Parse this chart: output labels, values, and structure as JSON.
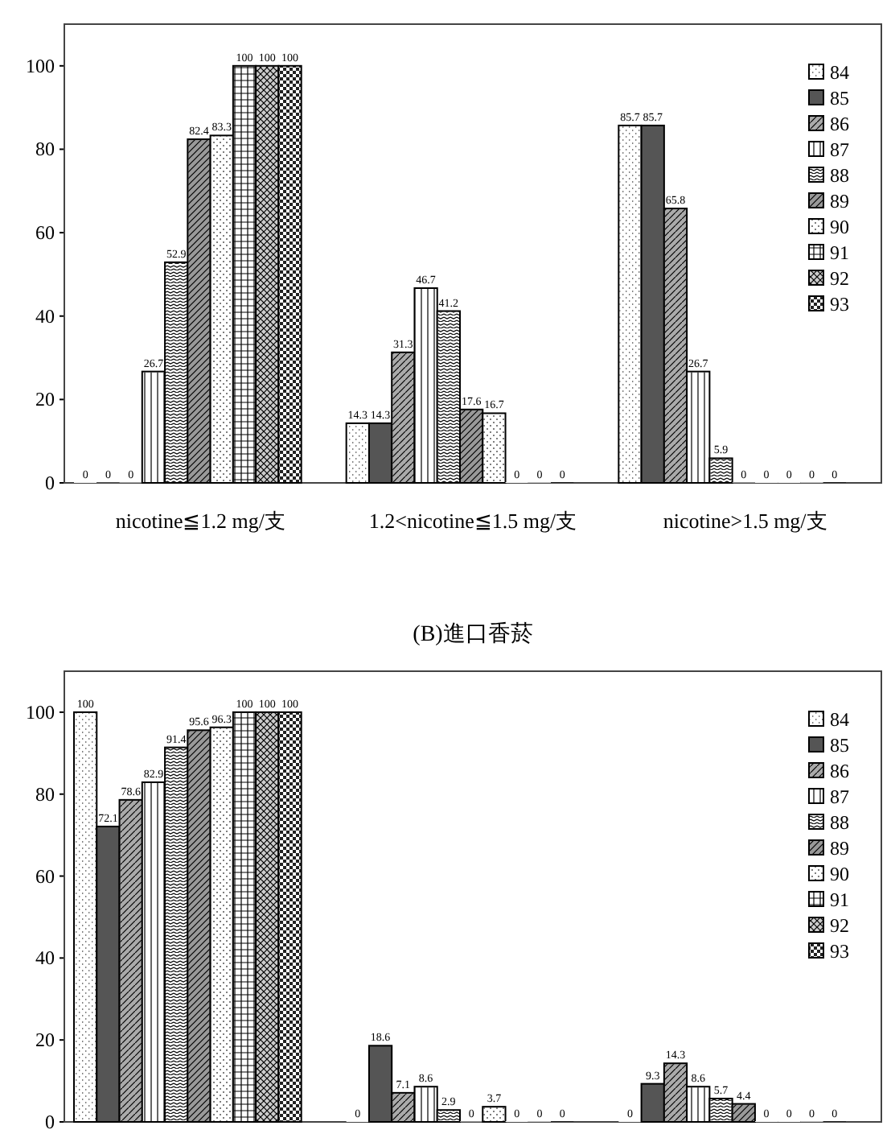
{
  "chart_data": [
    {
      "type": "bar",
      "categories": [
        "nicotine≦1.2 mg/支",
        "1.2<nicotine≦1.5 mg/支",
        "nicotine>1.5 mg/支"
      ],
      "ylim": [
        0,
        110
      ],
      "yticks": [
        0,
        20,
        40,
        60,
        80,
        100
      ],
      "data_labels": true,
      "legend": "right",
      "series": [
        {
          "name": "84",
          "color": "#ffffff",
          "values": [
            0,
            14.3,
            85.7
          ]
        },
        {
          "name": "85",
          "color": "#555555",
          "values": [
            0,
            14.3,
            85.7
          ]
        },
        {
          "name": "86",
          "color": "#aaaaaa",
          "values": [
            0,
            31.3,
            65.8
          ]
        },
        {
          "name": "87",
          "color": "#ffffff",
          "values": [
            26.7,
            46.7,
            26.7
          ]
        },
        {
          "name": "88",
          "color": "#ffffff",
          "values": [
            52.9,
            41.2,
            5.9
          ]
        },
        {
          "name": "89",
          "color": "#999999",
          "values": [
            82.4,
            17.6,
            0
          ]
        },
        {
          "name": "90",
          "color": "#ffffff",
          "values": [
            83.3,
            16.7,
            0
          ]
        },
        {
          "name": "91",
          "color": "#ffffff",
          "values": [
            100,
            0,
            0
          ]
        },
        {
          "name": "92",
          "color": "#cccccc",
          "values": [
            100,
            0,
            0
          ]
        },
        {
          "name": "93",
          "color": "#222222",
          "values": [
            100,
            0,
            0
          ]
        }
      ]
    },
    {
      "type": "bar",
      "title": "(B)進口香菸",
      "categories": [
        null,
        null,
        null
      ],
      "ylim": [
        0,
        110
      ],
      "yticks": [
        0,
        20,
        40,
        60,
        80,
        100
      ],
      "data_labels": true,
      "legend": "right",
      "series": [
        {
          "name": "84",
          "color": "#ffffff",
          "values": [
            100,
            0,
            0
          ]
        },
        {
          "name": "85",
          "color": "#555555",
          "values": [
            72.1,
            18.6,
            9.3
          ]
        },
        {
          "name": "86",
          "color": "#aaaaaa",
          "values": [
            78.6,
            7.1,
            14.3
          ]
        },
        {
          "name": "87",
          "color": "#ffffff",
          "values": [
            82.9,
            8.6,
            8.6
          ]
        },
        {
          "name": "88",
          "color": "#ffffff",
          "values": [
            91.4,
            2.9,
            5.7
          ]
        },
        {
          "name": "89",
          "color": "#999999",
          "values": [
            95.6,
            0,
            4.4
          ]
        },
        {
          "name": "90",
          "color": "#ffffff",
          "values": [
            96.3,
            3.7,
            0
          ]
        },
        {
          "name": "91",
          "color": "#ffffff",
          "values": [
            100,
            0,
            0
          ]
        },
        {
          "name": "92",
          "color": "#cccccc",
          "values": [
            100,
            0,
            0
          ]
        },
        {
          "name": "93",
          "color": "#222222",
          "values": [
            100,
            0,
            0
          ]
        }
      ]
    }
  ]
}
